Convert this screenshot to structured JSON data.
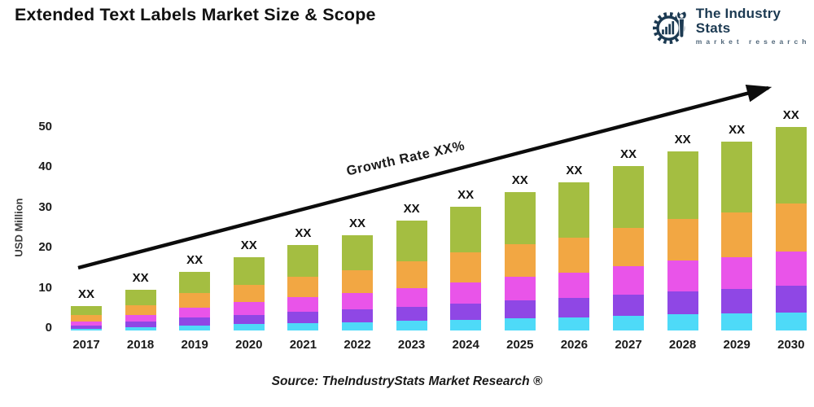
{
  "header": {
    "title": "Extended Text Labels Market Size & Scope",
    "logo": {
      "name": "The Industry Stats",
      "tagline": "market research",
      "color": "#1C3A52",
      "tagline_color": "#51677A",
      "icon": "gear-wrench-barchart-icon"
    }
  },
  "chart_data": {
    "type": "bar",
    "stacked": true,
    "title": "Extended Text Labels Market Size & Scope",
    "xlabel": "",
    "ylabel": "USD Million",
    "ylim": [
      0,
      50
    ],
    "yticks": [
      0,
      10,
      20,
      30,
      40,
      50
    ],
    "grid": false,
    "legend": false,
    "categories": [
      "2017",
      "2018",
      "2019",
      "2020",
      "2021",
      "2022",
      "2023",
      "2024",
      "2025",
      "2026",
      "2027",
      "2028",
      "2029",
      "2030"
    ],
    "series": [
      {
        "name": "segment-cyan",
        "color": "#4EDAF8",
        "values": [
          0.5,
          0.9,
          1.3,
          1.6,
          1.9,
          2.1,
          2.4,
          2.7,
          3.1,
          3.3,
          3.6,
          4.0,
          4.2,
          4.5
        ]
      },
      {
        "name": "segment-purple",
        "color": "#8F47E5",
        "values": [
          0.8,
          1.3,
          1.9,
          2.3,
          2.7,
          3.1,
          3.5,
          4.0,
          4.4,
          4.7,
          5.3,
          5.7,
          6.0,
          6.5
        ]
      },
      {
        "name": "segment-magenta",
        "color": "#E954E9",
        "values": [
          1.0,
          1.7,
          2.5,
          3.1,
          3.6,
          4.0,
          4.6,
          5.2,
          5.8,
          6.2,
          6.9,
          7.5,
          7.9,
          8.5
        ]
      },
      {
        "name": "segment-orange",
        "color": "#F2A743",
        "values": [
          1.5,
          2.4,
          3.5,
          4.3,
          5.0,
          5.6,
          6.5,
          7.3,
          8.0,
          8.6,
          9.5,
          10.3,
          10.9,
          11.8
        ]
      },
      {
        "name": "segment-green",
        "color": "#A4BE41",
        "values": [
          2.2,
          3.7,
          5.3,
          6.7,
          7.8,
          8.7,
          10.0,
          11.3,
          12.7,
          13.7,
          15.2,
          16.5,
          17.5,
          18.7
        ]
      }
    ],
    "totals": [
      6.0,
      10.0,
      14.5,
      18.0,
      21.0,
      23.5,
      27.0,
      30.5,
      34.0,
      36.5,
      40.5,
      44.0,
      46.5,
      50.0
    ],
    "bar_label": "XX",
    "annotation": {
      "text": "Growth Rate XX%",
      "style": "arrow-trend-up"
    }
  },
  "footer": {
    "source": "Source: TheIndustryStats Market Research ®"
  }
}
